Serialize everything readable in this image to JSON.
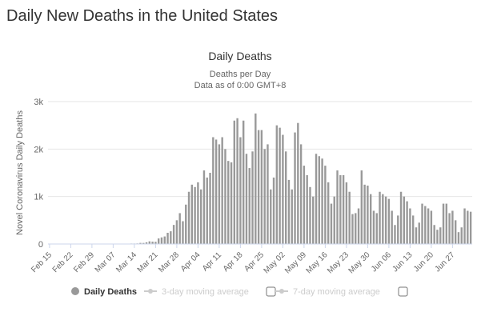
{
  "page_title": "Daily New Deaths in the United States",
  "chart_data": {
    "type": "bar",
    "title": "Daily Deaths",
    "subtitle": [
      "Deaths per Day",
      "Data as of 0:00 GMT+8"
    ],
    "y_label": "Novel Coronavirus Daily Deaths",
    "categories": [
      "Feb 15",
      null,
      null,
      null,
      null,
      null,
      null,
      "Feb 22",
      null,
      null,
      null,
      null,
      null,
      null,
      "Feb 29",
      null,
      null,
      null,
      null,
      null,
      null,
      "Mar 07",
      null,
      null,
      null,
      null,
      null,
      null,
      "Mar 14",
      null,
      null,
      null,
      null,
      null,
      null,
      "Mar 21",
      null,
      null,
      null,
      null,
      null,
      null,
      "Mar 28",
      null,
      null,
      null,
      null,
      null,
      null,
      "Apr 04",
      null,
      null,
      null,
      null,
      null,
      null,
      "Apr 11",
      null,
      null,
      null,
      null,
      null,
      null,
      "Apr 18",
      null,
      null,
      null,
      null,
      null,
      null,
      "Apr 25",
      null,
      null,
      null,
      null,
      null,
      null,
      "May 02",
      null,
      null,
      null,
      null,
      null,
      null,
      "May 09",
      null,
      null,
      null,
      null,
      null,
      null,
      "May 16",
      null,
      null,
      null,
      null,
      null,
      null,
      "May 23",
      null,
      null,
      null,
      null,
      null,
      null,
      "May 30",
      null,
      null,
      null,
      null,
      null,
      null,
      "Jun 06",
      null,
      null,
      null,
      null,
      null,
      null,
      "Jun 13",
      null,
      null,
      null,
      null,
      null,
      null,
      "Jun 20",
      null,
      null,
      null,
      null,
      null,
      null,
      "Jun 27",
      null,
      null,
      null,
      null,
      null,
      null
    ],
    "series": [
      {
        "name": "Daily Deaths",
        "color": "#999999",
        "values": [
          0,
          0,
          0,
          0,
          0,
          0,
          0,
          0,
          0,
          0,
          0,
          0,
          0,
          0,
          1,
          1,
          4,
          3,
          2,
          1,
          2,
          3,
          4,
          4,
          5,
          8,
          7,
          10,
          10,
          12,
          23,
          22,
          36,
          56,
          49,
          46,
          117,
          139,
          159,
          236,
          268,
          402,
          500,
          650,
          480,
          830,
          1100,
          1250,
          1200,
          1300,
          1150,
          1550,
          1400,
          1500,
          2250,
          2200,
          2100,
          2250,
          2000,
          1750,
          1720,
          2600,
          2650,
          2250,
          2600,
          1900,
          1600,
          1950,
          2750,
          2400,
          2400,
          2000,
          2100,
          1150,
          1400,
          2500,
          2450,
          2300,
          1950,
          1350,
          1150,
          2350,
          2550,
          2100,
          1650,
          1450,
          1200,
          1000,
          1900,
          1850,
          1800,
          1650,
          1300,
          850,
          1000,
          1550,
          1450,
          1450,
          1300,
          1100,
          630,
          650,
          750,
          1550,
          1250,
          1230,
          1050,
          700,
          650,
          1100,
          1050,
          1000,
          950,
          700,
          400,
          600,
          1100,
          1000,
          900,
          750,
          600,
          350,
          450,
          850,
          800,
          750,
          700,
          400,
          300,
          350,
          850,
          850,
          650,
          700,
          500,
          250,
          350,
          750,
          700,
          680
        ]
      }
    ],
    "toggles": [
      "3-day moving average",
      "7-day moving average"
    ],
    "ylim": [
      0,
      3000
    ],
    "yticks": [
      0,
      {
        "value": 1000,
        "label": "1k"
      },
      {
        "value": 2000,
        "label": "2k"
      },
      {
        "value": 3000,
        "label": "3k"
      }
    ],
    "grid": true
  }
}
